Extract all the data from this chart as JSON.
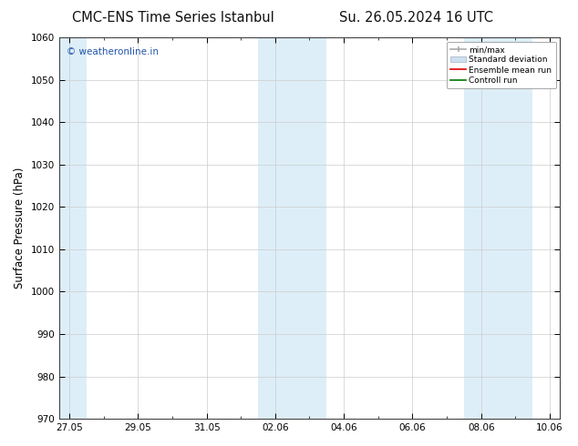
{
  "title_left": "CMC-ENS Time Series Istanbul",
  "title_right": "Su. 26.05.2024 16 UTC",
  "ylabel": "Surface Pressure (hPa)",
  "ylim": [
    970,
    1060
  ],
  "yticks": [
    970,
    980,
    990,
    1000,
    1010,
    1020,
    1030,
    1040,
    1050,
    1060
  ],
  "xtick_labels": [
    "27.05",
    "29.05",
    "31.05",
    "02.06",
    "04.06",
    "06.06",
    "08.06",
    "10.06"
  ],
  "xtick_positions": [
    0,
    2,
    4,
    6,
    8,
    10,
    12,
    14
  ],
  "xlim": [
    -0.3,
    14.3
  ],
  "shaded_bands": [
    {
      "start": -0.3,
      "end": 0.5,
      "color": "#ddeef8"
    },
    {
      "start": 5.5,
      "end": 7.5,
      "color": "#ddeef8"
    },
    {
      "start": 11.5,
      "end": 13.5,
      "color": "#ddeef8"
    }
  ],
  "watermark_text": "© weatheronline.in",
  "watermark_color": "#2255aa",
  "legend_items": [
    {
      "label": "min/max",
      "lcolor": "#aaaaaa",
      "style": "errorbar"
    },
    {
      "label": "Standard deviation",
      "lcolor": "#cce0f0",
      "style": "box"
    },
    {
      "label": "Ensemble mean run",
      "lcolor": "#dd0000",
      "style": "line"
    },
    {
      "label": "Controll run",
      "lcolor": "#007700",
      "style": "line"
    }
  ],
  "background_color": "#ffffff",
  "plot_bg_color": "#ffffff",
  "grid_color": "#cccccc",
  "tick_label_fontsize": 7.5,
  "axis_label_fontsize": 8.5,
  "title_fontsize": 10.5
}
